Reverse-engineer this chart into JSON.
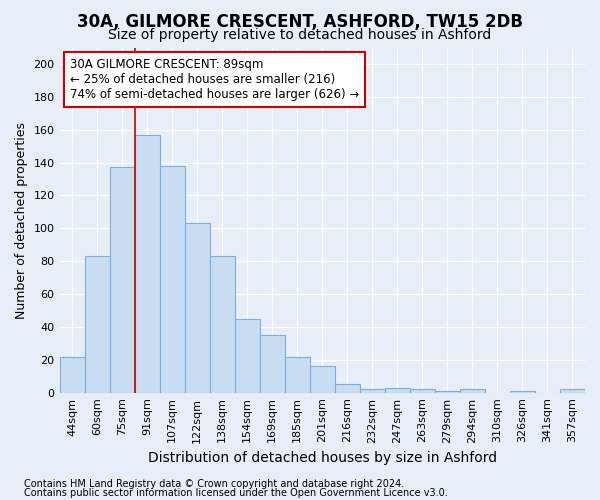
{
  "title1": "30A, GILMORE CRESCENT, ASHFORD, TW15 2DB",
  "title2": "Size of property relative to detached houses in Ashford",
  "xlabel": "Distribution of detached houses by size in Ashford",
  "ylabel": "Number of detached properties",
  "categories": [
    "44sqm",
    "60sqm",
    "75sqm",
    "91sqm",
    "107sqm",
    "122sqm",
    "138sqm",
    "154sqm",
    "169sqm",
    "185sqm",
    "201sqm",
    "216sqm",
    "232sqm",
    "247sqm",
    "263sqm",
    "279sqm",
    "294sqm",
    "310sqm",
    "326sqm",
    "341sqm",
    "357sqm"
  ],
  "values": [
    22,
    83,
    137,
    157,
    138,
    103,
    83,
    45,
    35,
    22,
    16,
    5,
    2,
    3,
    2,
    1,
    2,
    0,
    1,
    0,
    2
  ],
  "bar_color": "#c9ddf0",
  "bar_edge_color": "#7aaedc",
  "vline_color": "#cc0000",
  "vline_pos": 2.5,
  "ylim": [
    0,
    210
  ],
  "yticks": [
    0,
    20,
    40,
    60,
    80,
    100,
    120,
    140,
    160,
    180,
    200
  ],
  "annotation_text": "30A GILMORE CRESCENT: 89sqm\n← 25% of detached houses are smaller (216)\n74% of semi-detached houses are larger (626) →",
  "ann_box_edgecolor": "#cc0000",
  "footer1": "Contains HM Land Registry data © Crown copyright and database right 2024.",
  "footer2": "Contains public sector information licensed under the Open Government Licence v3.0.",
  "fig_bg_color": "#e8eef8",
  "plot_bg_color": "#e8eef8",
  "grid_color": "#ffffff",
  "title1_fontsize": 12,
  "title2_fontsize": 10,
  "xlabel_fontsize": 10,
  "ylabel_fontsize": 9,
  "tick_fontsize": 8,
  "ann_fontsize": 8.5,
  "footer_fontsize": 7
}
